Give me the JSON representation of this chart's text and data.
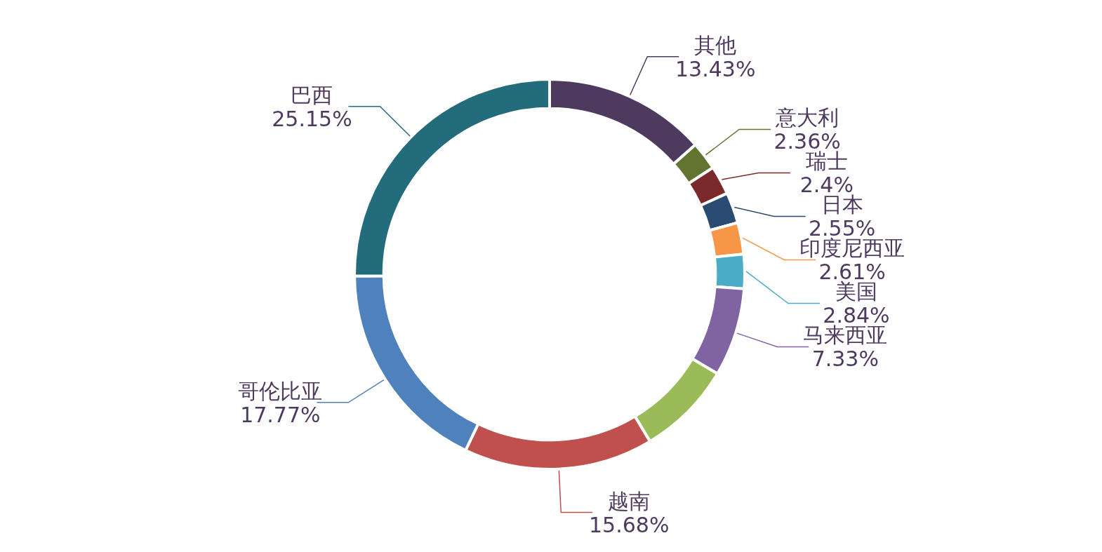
{
  "chart_data": {
    "type": "donut",
    "categories": [
      "其他",
      "意大利",
      "瑞士",
      "日本",
      "印度尼西亚",
      "美国",
      "马来西亚",
      null,
      "越南",
      "哥伦比亚",
      "巴西"
    ],
    "values": [
      13.43,
      2.36,
      2.4,
      2.55,
      2.61,
      2.84,
      7.33,
      7.88,
      15.68,
      17.77,
      25.15
    ],
    "value_labels": [
      "13.43%",
      "2.36%",
      "2.4%",
      "2.55%",
      "2.61%",
      "2.84%",
      "7.33%",
      null,
      "15.68%",
      "17.77%",
      "25.15%"
    ],
    "colors": [
      "#4e3a5f",
      "#627530",
      "#7a2a2a",
      "#2a4b72",
      "#f79646",
      "#4bacc6",
      "#8064a2",
      "#9bbb59",
      "#c0504d",
      "#4f81bd",
      "#226c7c"
    ],
    "legend": false
  }
}
